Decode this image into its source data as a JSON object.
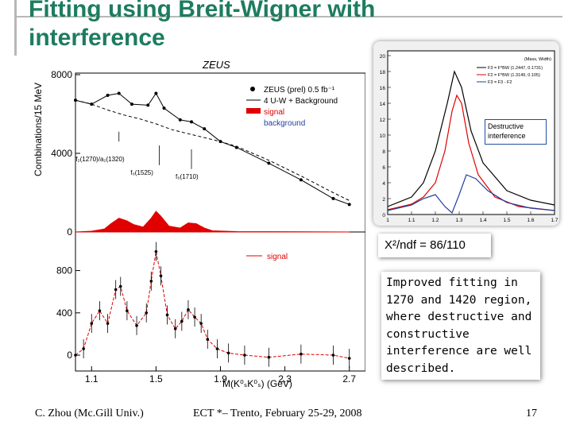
{
  "slide": {
    "title": "Fitting using Breit-Wigner with interference",
    "chi2_label": "X²/ndf = 86/110",
    "note": "Improved fitting in 1270 and 1420 region, where destructive and constructive interference are well described.",
    "callout": "Destructive interference",
    "footer_left": "C. Zhou (Mc.Gill Univ.)",
    "footer_center": "ECT *– Trento, February 25-29, 2008",
    "page_number": "17",
    "colors": {
      "title": "#1d7c5f",
      "signal": "#e00000",
      "background_line": "#1f3fa0"
    }
  },
  "chart_data": [
    {
      "type": "line",
      "panel": "upper",
      "title": "ZEUS",
      "ylabel": "Combinations/15 MeV",
      "xlim": [
        1.0,
        2.8
      ],
      "ylim": [
        0,
        8000
      ],
      "yticks": [
        "8000",
        "4000",
        "0"
      ],
      "yticks_values": [
        8000,
        4000,
        0
      ],
      "legend": [
        "ZEUS (prel) 0.5 fb⁻¹",
        "4 U-W + Background",
        "signal",
        "background"
      ],
      "legend_position": "top-right",
      "annotations": [
        "f₂(1270)/a₂(1320)",
        "f₀(1525)",
        "f₀(1710)"
      ],
      "series": [
        {
          "name": "ZEUS (prel) 0.5 fb⁻¹",
          "x": [
            1.0,
            1.1,
            1.2,
            1.27,
            1.35,
            1.45,
            1.5,
            1.55,
            1.65,
            1.72,
            1.8,
            1.9,
            2.0,
            2.2,
            2.4,
            2.6,
            2.7
          ],
          "y": [
            6700,
            6500,
            6950,
            7050,
            6500,
            6450,
            7050,
            6300,
            5700,
            5600,
            5250,
            4600,
            4300,
            3500,
            2650,
            1700,
            1400
          ]
        },
        {
          "name": "background",
          "x": [
            1.0,
            1.1,
            1.2,
            1.3,
            1.4,
            1.5,
            1.6,
            1.7,
            1.8,
            1.9,
            2.0,
            2.2,
            2.4,
            2.6,
            2.7
          ],
          "y": [
            6700,
            6500,
            6200,
            5950,
            5750,
            5500,
            5200,
            5000,
            4800,
            4600,
            4350,
            3650,
            2850,
            2000,
            1600
          ]
        },
        {
          "name": "signal",
          "x": [
            1.0,
            1.1,
            1.18,
            1.22,
            1.27,
            1.32,
            1.36,
            1.42,
            1.47,
            1.5,
            1.53,
            1.58,
            1.65,
            1.7,
            1.75,
            1.8,
            1.85,
            2.0,
            2.7
          ],
          "y": [
            0,
            40,
            150,
            420,
            700,
            560,
            380,
            250,
            700,
            1050,
            800,
            300,
            200,
            460,
            420,
            200,
            60,
            20,
            0
          ]
        }
      ]
    },
    {
      "type": "scatter",
      "panel": "lower",
      "xlabel": "M(K⁰ₛK⁰ₛ) (GeV)",
      "xlim": [
        1.0,
        2.8
      ],
      "ylim": [
        -150,
        1150
      ],
      "xticks": [
        "1.1",
        "1.5",
        "1.9",
        "2.3",
        "2.7"
      ],
      "yticks": [
        "800",
        "400",
        "0"
      ],
      "legend": [
        "signal"
      ],
      "series": [
        {
          "name": "signal",
          "x": [
            1.0,
            1.05,
            1.1,
            1.15,
            1.2,
            1.25,
            1.28,
            1.32,
            1.38,
            1.44,
            1.47,
            1.5,
            1.53,
            1.57,
            1.62,
            1.66,
            1.7,
            1.74,
            1.78,
            1.82,
            1.88,
            1.95,
            2.05,
            2.2,
            2.4,
            2.6,
            2.7
          ],
          "y": [
            0,
            60,
            300,
            420,
            300,
            620,
            650,
            420,
            280,
            400,
            700,
            980,
            750,
            380,
            250,
            320,
            430,
            360,
            300,
            150,
            60,
            20,
            0,
            -20,
            10,
            0,
            -30
          ]
        }
      ]
    },
    {
      "type": "line",
      "panel": "inset",
      "xlim": [
        1.0,
        1.7
      ],
      "ylim": [
        0,
        20
      ],
      "xticks": [
        "1",
        "1.1",
        "1.2",
        "1.3",
        "1.4",
        "1.5",
        "1.6",
        "1.7"
      ],
      "yticks": [
        "20",
        "18",
        "16",
        "14",
        "12",
        "10",
        "8",
        "6",
        "4",
        "2",
        "0"
      ],
      "legend_header": "(Mass, Width)",
      "legend": [
        "F3 = F*BW (1.2447, 0.1731)",
        "F2 = F*BW (1.3149, 0.105)",
        "F3 = F3 - F2"
      ],
      "legend_position": "top-right",
      "series": [
        {
          "name": "F3 = F*BW (1.2447, 0.1731)",
          "x": [
            1.0,
            1.1,
            1.15,
            1.2,
            1.25,
            1.28,
            1.31,
            1.35,
            1.4,
            1.5,
            1.6,
            1.7
          ],
          "y": [
            1.0,
            2.2,
            4.0,
            8.0,
            14.0,
            18.0,
            16.0,
            10.5,
            6.5,
            3.0,
            1.8,
            1.2
          ]
        },
        {
          "name": "F2 = F*BW (1.3149, 0.105)",
          "x": [
            1.0,
            1.1,
            1.15,
            1.2,
            1.24,
            1.27,
            1.29,
            1.31,
            1.34,
            1.38,
            1.45,
            1.55,
            1.7
          ],
          "y": [
            0.6,
            1.3,
            2.2,
            4.0,
            8.0,
            13.0,
            15.0,
            14.0,
            9.0,
            5.0,
            2.2,
            1.0,
            0.5
          ]
        },
        {
          "name": "F3 = F3 - F2",
          "x": [
            1.0,
            1.1,
            1.15,
            1.2,
            1.24,
            1.27,
            1.3,
            1.33,
            1.37,
            1.42,
            1.5,
            1.6,
            1.7
          ],
          "y": [
            0.5,
            1.2,
            2.0,
            2.5,
            1.0,
            0.2,
            2.5,
            5.0,
            4.5,
            3.0,
            1.5,
            0.8,
            0.5
          ]
        }
      ]
    }
  ]
}
